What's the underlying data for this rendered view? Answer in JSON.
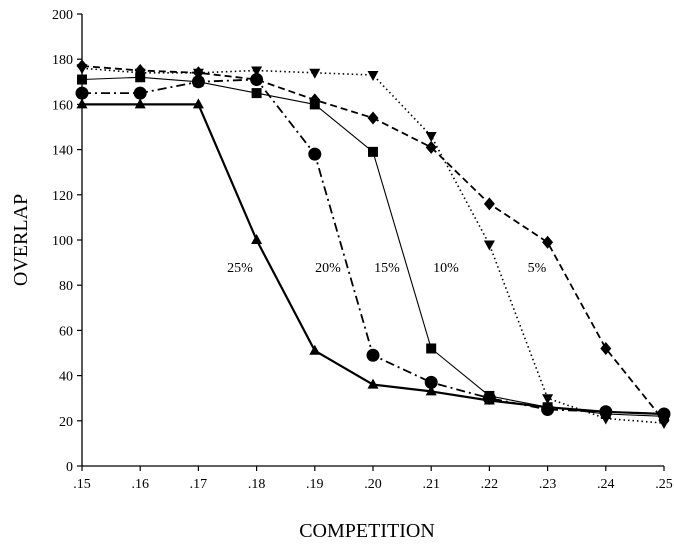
{
  "chart_data": {
    "type": "line",
    "title": "",
    "xlabel": "COMPETITION",
    "ylabel": "OVERLAP",
    "x": [
      0.15,
      0.16,
      0.17,
      0.18,
      0.19,
      0.2,
      0.21,
      0.22,
      0.23,
      0.24,
      0.25
    ],
    "x_tick_labels": [
      ".15",
      ".16",
      ".17",
      ".18",
      ".19",
      ".20",
      ".21",
      ".22",
      ".23",
      ".24",
      ".25"
    ],
    "y_ticks": [
      0,
      20,
      40,
      60,
      80,
      100,
      120,
      140,
      160,
      180,
      200
    ],
    "xlim": [
      0.15,
      0.25
    ],
    "ylim": [
      0,
      200
    ],
    "grid": false,
    "legend": "none",
    "series": [
      {
        "name": "25%",
        "marker": "triangle-up",
        "line": "solid-thick",
        "color": "#000000",
        "values": [
          160,
          160,
          160,
          100,
          51,
          36,
          33,
          29,
          26,
          24,
          23
        ]
      },
      {
        "name": "20%",
        "marker": "circle",
        "line": "dashdot",
        "color": "#000000",
        "values": [
          165,
          165,
          170,
          171,
          138,
          49,
          37,
          30,
          25,
          24,
          23
        ]
      },
      {
        "name": "15%",
        "marker": "square",
        "line": "solid-thin",
        "color": "#000000",
        "values": [
          171,
          172,
          170,
          165,
          160,
          139,
          52,
          31,
          26,
          23,
          22
        ]
      },
      {
        "name": "10%",
        "marker": "triangle-down",
        "line": "dotted",
        "color": "#000000",
        "values": [
          176,
          174,
          174,
          175,
          174,
          173,
          146,
          98,
          30,
          21,
          19
        ]
      },
      {
        "name": "5%",
        "marker": "diamond",
        "line": "dashed",
        "color": "#000000",
        "values": [
          177,
          175,
          174,
          171,
          162,
          154,
          141,
          116,
          99,
          52,
          20
        ]
      }
    ]
  }
}
